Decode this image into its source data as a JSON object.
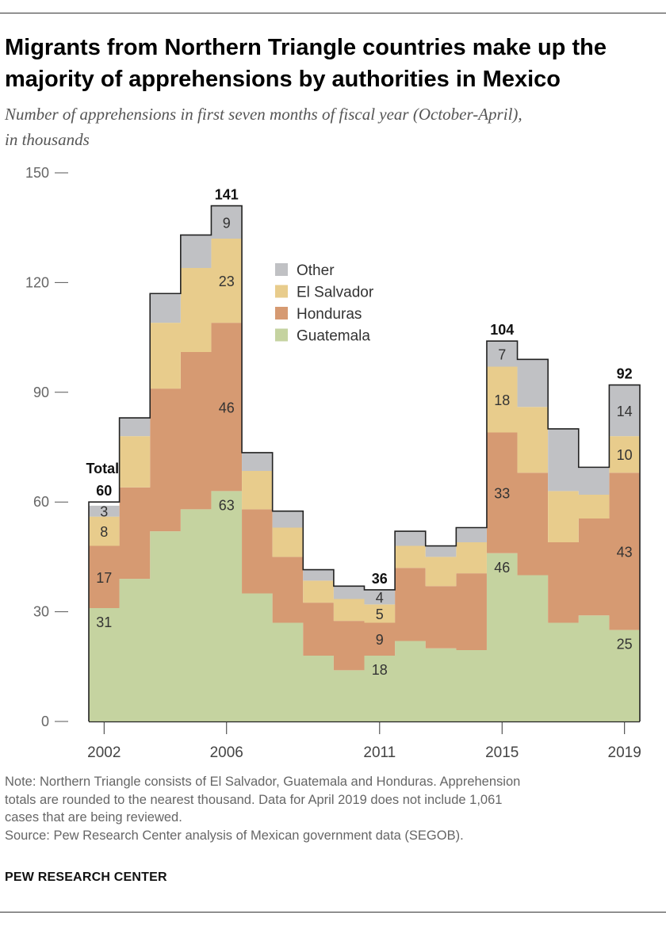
{
  "header": {
    "title": "Migrants from Northern Triangle countries make up the majority of apprehensions by authorities in Mexico",
    "subtitle_line1": "Number of apprehensions in first seven months of fiscal year (October-April),",
    "subtitle_line2": "in thousands"
  },
  "footer": {
    "note_line1": "Note: Northern Triangle consists of El Salvador, Guatemala and Honduras. Apprehension",
    "note_line2": "totals are rounded to the nearest thousand. Data for April 2019 does not include 1,061",
    "note_line3": "cases that are being reviewed.",
    "source": "Source: Pew Research Center analysis of Mexican government data (SEGOB).",
    "brand": "PEW RESEARCH CENTER"
  },
  "colors": {
    "Guatemala": "#c5d3a0",
    "Honduras": "#d69a72",
    "El Salvador": "#e8cc8c",
    "Other": "#c0c1c4"
  },
  "chart_data": {
    "type": "area",
    "title": "Number of apprehensions in first seven months of fiscal year (October-April), in thousands",
    "x": [
      2002,
      2003,
      2004,
      2005,
      2006,
      2007,
      2008,
      2009,
      2010,
      2011,
      2012,
      2013,
      2014,
      2015,
      2016,
      2017,
      2018,
      2019
    ],
    "xticks": [
      2002,
      2006,
      2011,
      2015,
      2019
    ],
    "ylim": [
      0,
      150
    ],
    "yticks": [
      0,
      30,
      60,
      90,
      120,
      150
    ],
    "stacked": true,
    "step": true,
    "series": [
      {
        "name": "Guatemala",
        "values": [
          31,
          39,
          52,
          58,
          63,
          35,
          27,
          18,
          14,
          18,
          22,
          20,
          19.5,
          46,
          40,
          27,
          29,
          25
        ]
      },
      {
        "name": "Honduras",
        "values": [
          17,
          25,
          39,
          43,
          46,
          23,
          18,
          14.5,
          13.5,
          9,
          20,
          17,
          21,
          33,
          28,
          22,
          26.5,
          43
        ]
      },
      {
        "name": "El Salvador",
        "values": [
          8,
          14,
          18,
          23,
          23,
          10.5,
          8,
          6,
          6,
          5,
          6,
          8,
          8.5,
          18,
          18,
          14,
          6.5,
          10
        ]
      },
      {
        "name": "Other",
        "values": [
          3,
          5,
          8,
          9,
          9,
          5,
          4.5,
          3,
          3.5,
          4,
          4,
          3,
          4,
          7,
          13,
          17,
          7.5,
          14
        ]
      }
    ],
    "totals": [
      60,
      83,
      117,
      133,
      141,
      73.5,
      57.5,
      41.5,
      37,
      36,
      52,
      48,
      53,
      104,
      99,
      80,
      69.5,
      92
    ],
    "total_labels": [
      {
        "x": 2002,
        "text": "60"
      },
      {
        "x": 2006,
        "text": "141"
      },
      {
        "x": 2011,
        "text": "36"
      },
      {
        "x": 2015,
        "text": "104"
      },
      {
        "x": 2019,
        "text": "92"
      }
    ],
    "total_caption": "Total",
    "value_labels": [
      {
        "x": 2002,
        "series": "Guatemala",
        "text": "31"
      },
      {
        "x": 2002,
        "series": "Honduras",
        "text": "17"
      },
      {
        "x": 2002,
        "series": "El Salvador",
        "text": "8"
      },
      {
        "x": 2002,
        "series": "Other",
        "text": "3"
      },
      {
        "x": 2006,
        "series": "Guatemala",
        "text": "63"
      },
      {
        "x": 2006,
        "series": "Honduras",
        "text": "46"
      },
      {
        "x": 2006,
        "series": "El Salvador",
        "text": "23"
      },
      {
        "x": 2006,
        "series": "Other",
        "text": "9"
      },
      {
        "x": 2011,
        "series": "Guatemala",
        "text": "18"
      },
      {
        "x": 2011,
        "series": "Honduras",
        "text": "9"
      },
      {
        "x": 2011,
        "series": "El Salvador",
        "text": "5"
      },
      {
        "x": 2011,
        "series": "Other",
        "text": "4"
      },
      {
        "x": 2015,
        "series": "Guatemala",
        "text": "46"
      },
      {
        "x": 2015,
        "series": "Honduras",
        "text": "33"
      },
      {
        "x": 2015,
        "series": "El Salvador",
        "text": "18"
      },
      {
        "x": 2015,
        "series": "Other",
        "text": "7"
      },
      {
        "x": 2019,
        "series": "Guatemala",
        "text": "25"
      },
      {
        "x": 2019,
        "series": "Honduras",
        "text": "43"
      },
      {
        "x": 2019,
        "series": "El Salvador",
        "text": "10"
      },
      {
        "x": 2019,
        "series": "Other",
        "text": "14"
      }
    ],
    "legend": [
      "Other",
      "El Salvador",
      "Honduras",
      "Guatemala"
    ],
    "legend_position": "top-center",
    "grid": false
  }
}
